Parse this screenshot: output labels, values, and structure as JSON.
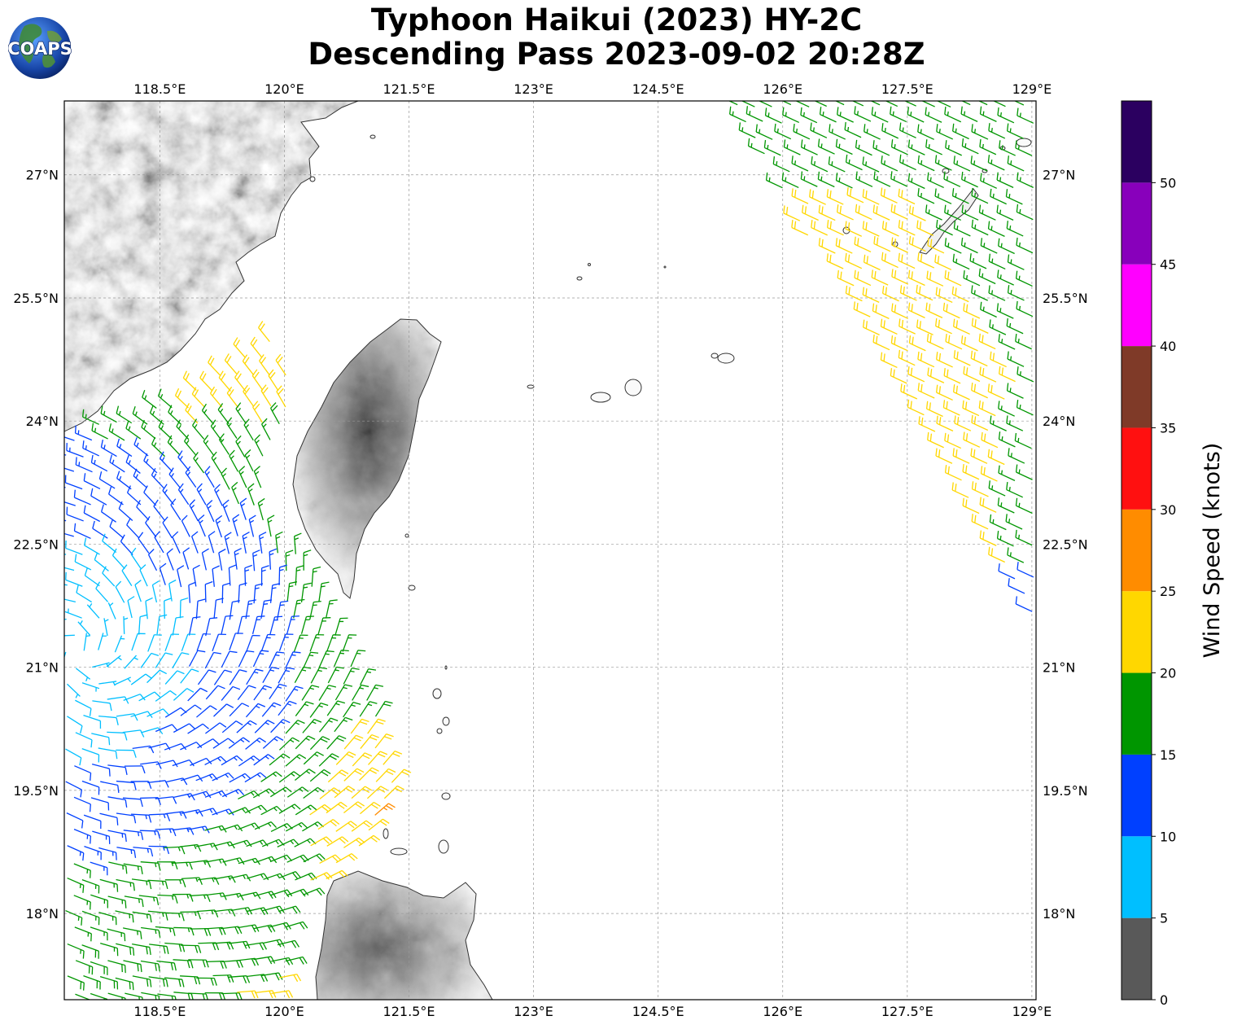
{
  "title": {
    "line1": "Typhoon Haikui (2023) HY-2C",
    "line2": "Descending Pass 2023-09-02 20:28Z"
  },
  "logo": {
    "text": "COAPS",
    "icon": "globe-logo-icon"
  },
  "map": {
    "extent": {
      "lon_min": 117.35,
      "lon_max": 129.05,
      "lat_min": 16.95,
      "lat_max": 27.9
    },
    "lon_ticks": [
      {
        "value": 118.5,
        "label": "118.5°E"
      },
      {
        "value": 120.0,
        "label": "120°E"
      },
      {
        "value": 121.5,
        "label": "121.5°E"
      },
      {
        "value": 123.0,
        "label": "123°E"
      },
      {
        "value": 124.5,
        "label": "124.5°E"
      },
      {
        "value": 126.0,
        "label": "126°E"
      },
      {
        "value": 127.5,
        "label": "127.5°E"
      },
      {
        "value": 129.0,
        "label": "129°E"
      }
    ],
    "lat_ticks": [
      {
        "value": 27.0,
        "label": "27°N"
      },
      {
        "value": 25.5,
        "label": "25.5°N"
      },
      {
        "value": 24.0,
        "label": "24°N"
      },
      {
        "value": 22.5,
        "label": "22.5°N"
      },
      {
        "value": 21.0,
        "label": "21°N"
      },
      {
        "value": 19.5,
        "label": "19.5°N"
      },
      {
        "value": 18.0,
        "label": "18°N"
      }
    ],
    "gridlines": true,
    "background": "terrain-grayscale",
    "overlay": "wind-barbs"
  },
  "colorbar": {
    "label": "Wind Speed (knots)",
    "ticks": [
      "0",
      "5",
      "10",
      "15",
      "20",
      "25",
      "30",
      "35",
      "40",
      "45",
      "50"
    ],
    "bins": [
      {
        "min": 0,
        "max": 5,
        "color": "#595959"
      },
      {
        "min": 5,
        "max": 10,
        "color": "#00bfff"
      },
      {
        "min": 10,
        "max": 15,
        "color": "#0040ff"
      },
      {
        "min": 15,
        "max": 20,
        "color": "#009600"
      },
      {
        "min": 20,
        "max": 25,
        "color": "#ffd700"
      },
      {
        "min": 25,
        "max": 30,
        "color": "#ff8c00"
      },
      {
        "min": 30,
        "max": 35,
        "color": "#ff1010"
      },
      {
        "min": 35,
        "max": 40,
        "color": "#7f3a28"
      },
      {
        "min": 40,
        "max": 45,
        "color": "#ff00ff"
      },
      {
        "min": 45,
        "max": 50,
        "color": "#8800bb"
      },
      {
        "min": 50,
        "max": 55,
        "color": "#2b0060"
      }
    ],
    "max": 55
  }
}
